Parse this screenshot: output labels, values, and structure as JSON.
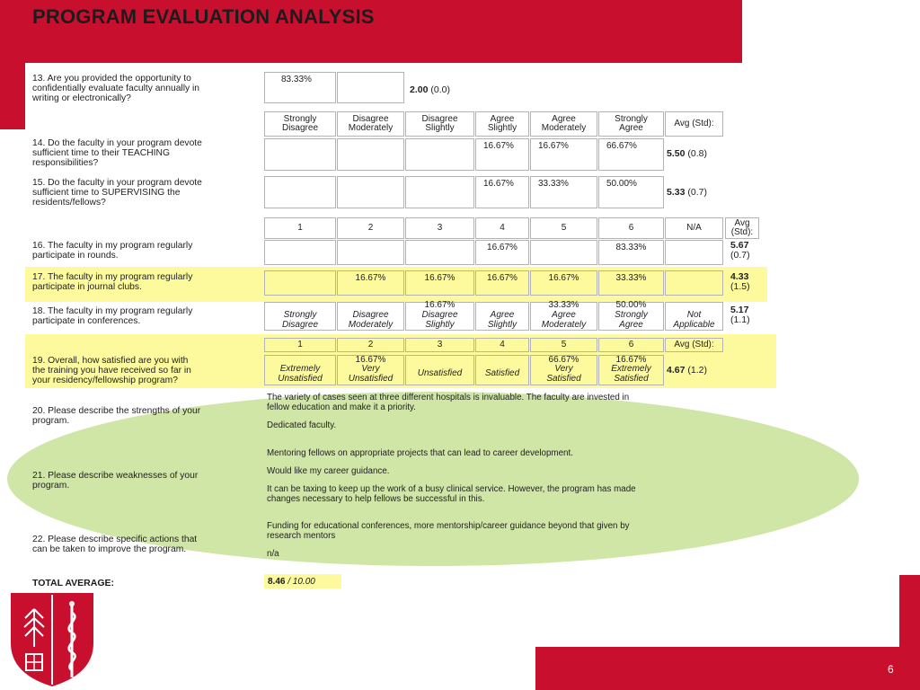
{
  "slide_title": "PROGRAM EVALUATION ANALYSIS",
  "page_number": "6",
  "q13": {
    "text": [
      "13. Are you provided the opportunity to",
      "confidentially evaluate faculty annually in",
      "writing or electronically?"
    ],
    "col1": "83.33%",
    "avg": "2.00",
    "std": "(0.0)"
  },
  "scale_a": [
    "Strongly|Disagree",
    "Disagree|Moderately",
    "Disagree|Slightly",
    "Agree|Slightly",
    "Agree|Moderately",
    "Strongly|Agree",
    "Avg (Std):"
  ],
  "q14": {
    "text": [
      "14. Do the faculty in your program devote",
      "sufficient time to their TEACHING",
      "responsibilities?"
    ],
    "cells": [
      "",
      "",
      "",
      "16.67%",
      "16.67%",
      "66.67%"
    ],
    "avg": "5.50",
    "std": "(0.8)"
  },
  "q15": {
    "text": [
      "15. Do the faculty in your program devote",
      "sufficient time to SUPERVISING the",
      "residents/fellows?"
    ],
    "cells": [
      "",
      "",
      "",
      "16.67%",
      "33.33%",
      "50.00%"
    ],
    "avg": "5.33",
    "std": "(0.7)"
  },
  "scale_b": [
    "1",
    "2",
    "3",
    "4",
    "5",
    "6",
    "N/A",
    "Avg|(Std):"
  ],
  "q16": {
    "text": [
      "16. The faculty in my program regularly",
      "participate in rounds."
    ],
    "cells": [
      "",
      "",
      "",
      "16.67%",
      "",
      "83.33%",
      ""
    ],
    "avg": "5.67",
    "std": "(0.7)"
  },
  "q17": {
    "text": [
      "17. The faculty in my program regularly",
      "participate in journal clubs."
    ],
    "cells": [
      "",
      "16.67%",
      "16.67%",
      "16.67%",
      "16.67%",
      "33.33%",
      ""
    ],
    "avg": "4.33",
    "std": "(1.5)"
  },
  "q18": {
    "text": [
      "18. The faculty in my program regularly",
      "participate in conferences."
    ],
    "pct": [
      "",
      "",
      "16.67%",
      "",
      "33.33%",
      "50.00%",
      ""
    ],
    "labels": [
      "Strongly|Disagree",
      "Disagree|Moderately",
      "Disagree|Slightly",
      "Agree|Slightly",
      "Agree|Moderately",
      "Strongly|Agree",
      "Not|Applicable"
    ],
    "avg": "5.17",
    "std": "(1.1)"
  },
  "q19": {
    "text": [
      "19. Overall, how satisfied are you with",
      "the training you have received so far in",
      "your residency/fellowship program?"
    ],
    "scale": [
      "1",
      "2",
      "3",
      "4",
      "5",
      "6"
    ],
    "avg_header": "Avg (Std):",
    "pct": [
      "",
      "16.67%",
      "",
      "",
      "66.67%",
      "16.67%"
    ],
    "labels": [
      "Extremely|Unsatisfied",
      "Very|Unsatisfied",
      "Unsatisfied",
      "Satisfied",
      "Very|Satisfied",
      "Extremely|Satisfied"
    ],
    "avg": "4.67",
    "std": "(1.2)"
  },
  "q20": {
    "text": [
      "20. Please describe the strengths of your",
      "program."
    ],
    "comments": [
      [
        "The variety of cases seen at three different hospitals is invaluable. The faculty are invested in",
        "fellow education and make it a priority."
      ],
      [
        "Dedicated faculty."
      ],
      [
        "Mentoring fellows on appropriate projects that can lead to career development."
      ]
    ]
  },
  "q21": {
    "text": [
      "21. Please describe weaknesses of your",
      "program."
    ],
    "comments": [
      [
        "Would like my career guidance."
      ],
      [
        "It can be taxing to keep up the work of a busy clinical service. However, the program has made",
        "changes necessary to help fellows be successful in this."
      ]
    ]
  },
  "q22": {
    "text": [
      "22. Please describe specific actions that",
      "can be taken to improve the program."
    ],
    "comments": [
      [
        "Funding for educational conferences, more mentorship/career guidance beyond that given by",
        "research mentors"
      ],
      [
        "n/a"
      ]
    ]
  },
  "total": {
    "label": "TOTAL AVERAGE:",
    "score": "8.46",
    "max": "/ 10.00"
  },
  "colors": {
    "brand_red": "#c8102e",
    "highlight": "#fdfa9e",
    "oval_green": "#cfe6a6"
  }
}
